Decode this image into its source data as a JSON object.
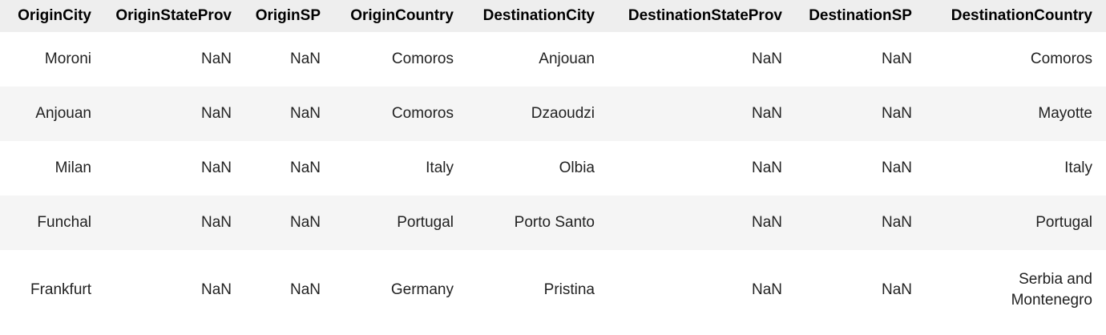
{
  "table": {
    "columns": [
      "OriginCity",
      "OriginStateProv",
      "OriginSP",
      "OriginCountry",
      "DestinationCity",
      "DestinationStateProv",
      "DestinationSP",
      "DestinationCountry"
    ],
    "rows": [
      [
        "Moroni",
        "NaN",
        "NaN",
        "Comoros",
        "Anjouan",
        "NaN",
        "NaN",
        "Comoros"
      ],
      [
        "Anjouan",
        "NaN",
        "NaN",
        "Comoros",
        "Dzaoudzi",
        "NaN",
        "NaN",
        "Mayotte"
      ],
      [
        "Milan",
        "NaN",
        "NaN",
        "Italy",
        "Olbia",
        "NaN",
        "NaN",
        "Italy"
      ],
      [
        "Funchal",
        "NaN",
        "NaN",
        "Portugal",
        "Porto Santo",
        "NaN",
        "NaN",
        "Portugal"
      ],
      [
        "Frankfurt",
        "NaN",
        "NaN",
        "Germany",
        "Pristina",
        "NaN",
        "NaN",
        "Serbia and Montenegro"
      ]
    ]
  }
}
